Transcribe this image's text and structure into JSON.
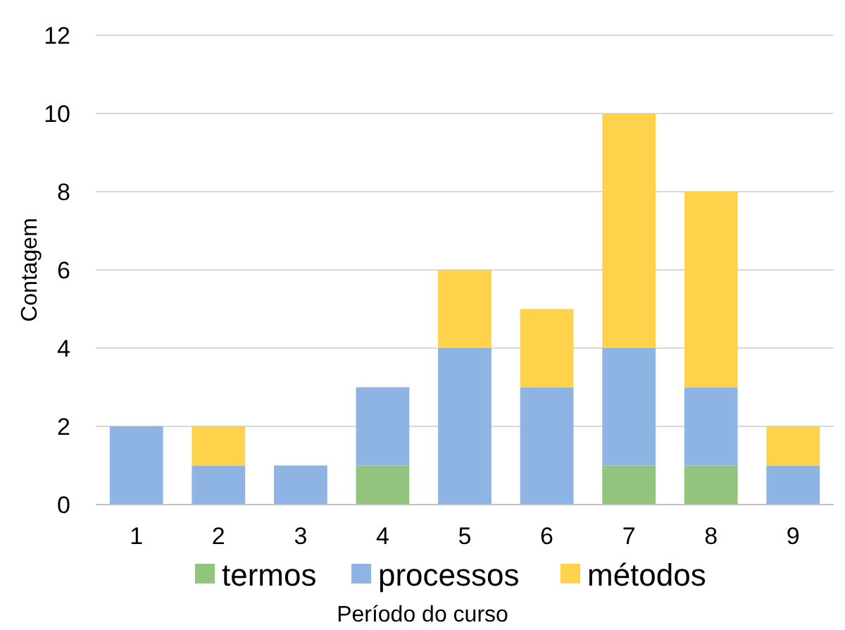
{
  "chart_data": {
    "type": "bar",
    "stacked": true,
    "xlabel": "Período do curso",
    "ylabel": "Contagem",
    "categories": [
      "1",
      "2",
      "3",
      "4",
      "5",
      "6",
      "7",
      "8",
      "9"
    ],
    "series": [
      {
        "name": "termos",
        "color": "#93c47d",
        "values": [
          0,
          0,
          0,
          1,
          0,
          0,
          1,
          1,
          0
        ]
      },
      {
        "name": "processos",
        "color": "#8db4e2",
        "values": [
          2,
          1,
          1,
          2,
          4,
          3,
          3,
          2,
          1
        ]
      },
      {
        "name": "métodos",
        "color": "#ffd24c",
        "values": [
          0,
          1,
          0,
          0,
          2,
          2,
          6,
          5,
          1
        ]
      }
    ],
    "ylim": [
      0,
      12
    ],
    "yticks": [
      0,
      2,
      4,
      6,
      8,
      10,
      12
    ],
    "grid": "y",
    "legend": "bottom"
  }
}
